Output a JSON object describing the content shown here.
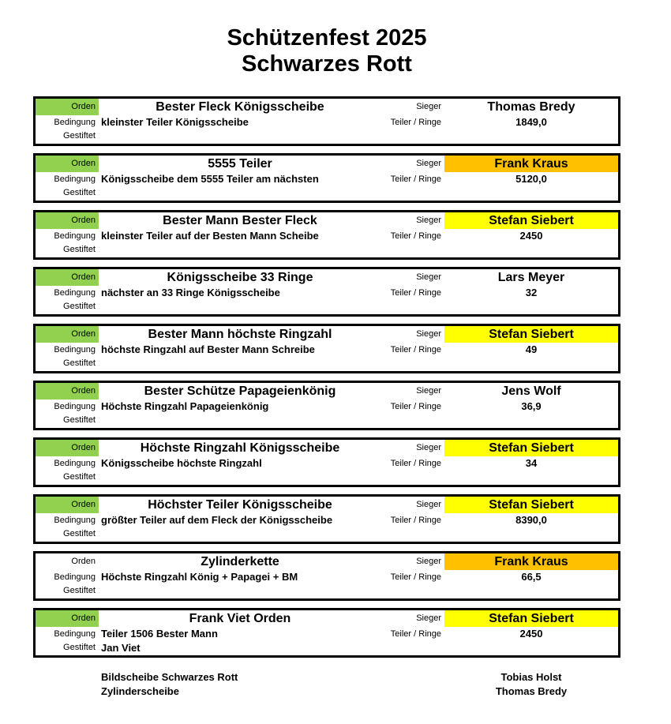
{
  "page": {
    "title_line1": "Schützenfest 2025",
    "title_line2": "Schwarzes Rott"
  },
  "labels": {
    "orden": "Orden",
    "bedingung": "Bedingung",
    "gestiftet": "Gestiftet",
    "sieger": "Sieger",
    "teiler_ringe": "Teiler / Ringe"
  },
  "colors": {
    "orden_green": "#92d050",
    "winner_yellow": "#ffff00",
    "winner_orange": "#ffc000"
  },
  "awards": [
    {
      "title": "Bester Fleck Königsscheibe",
      "bedingung": "kleinster Teiler Königsscheibe",
      "gestiftet": "",
      "sieger": "Thomas Bredy",
      "teiler_ringe": "1849,0",
      "orden_color": "#92d050",
      "winner_color": ""
    },
    {
      "title": "5555 Teiler",
      "bedingung": "Königsscheibe dem 5555 Teiler am nächsten",
      "gestiftet": "",
      "sieger": "Frank Kraus",
      "teiler_ringe": "5120,0",
      "orden_color": "#92d050",
      "winner_color": "#ffc000"
    },
    {
      "title": "Bester Mann Bester Fleck",
      "bedingung": "kleinster Teiler auf der Besten Mann Scheibe",
      "gestiftet": "",
      "sieger": "Stefan Siebert",
      "teiler_ringe": "2450",
      "orden_color": "#92d050",
      "winner_color": "#ffff00"
    },
    {
      "title": "Königsscheibe 33 Ringe",
      "bedingung": "nächster an 33 Ringe Königsscheibe",
      "gestiftet": "",
      "sieger": "Lars Meyer",
      "teiler_ringe": "32",
      "orden_color": "#92d050",
      "winner_color": ""
    },
    {
      "title": "Bester Mann höchste Ringzahl",
      "bedingung": "höchste Ringzahl auf Bester Mann Schreibe",
      "gestiftet": "",
      "sieger": "Stefan Siebert",
      "teiler_ringe": "49",
      "orden_color": "#92d050",
      "winner_color": "#ffff00"
    },
    {
      "title": "Bester Schütze Papageienkönig",
      "bedingung": "Höchste Ringzahl Papageienkönig",
      "gestiftet": "",
      "sieger": "Jens Wolf",
      "teiler_ringe": "36,9",
      "orden_color": "#92d050",
      "winner_color": ""
    },
    {
      "title": "Höchste Ringzahl Königsscheibe",
      "bedingung": "Königsscheibe höchste Ringzahl",
      "gestiftet": "",
      "sieger": "Stefan Siebert",
      "teiler_ringe": "34",
      "orden_color": "#92d050",
      "winner_color": "#ffff00"
    },
    {
      "title": "Höchster Teiler Königsscheibe",
      "bedingung": "größter Teiler auf dem Fleck der Königsscheibe",
      "gestiftet": "",
      "sieger": "Stefan Siebert",
      "teiler_ringe": "8390,0",
      "orden_color": "#92d050",
      "winner_color": "#ffff00"
    },
    {
      "title": "Zylinderkette",
      "bedingung": "Höchste Ringzahl König + Papagei + BM",
      "gestiftet": "",
      "sieger": "Frank Kraus",
      "teiler_ringe": "66,5",
      "orden_color": "",
      "winner_color": "#ffc000"
    },
    {
      "title": "Frank Viet Orden",
      "bedingung": "Teiler 1506 Bester Mann",
      "gestiftet": "Jan Viet",
      "sieger": "Stefan Siebert",
      "teiler_ringe": "2450",
      "orden_color": "#92d050",
      "winner_color": "#ffff00"
    }
  ],
  "footer": {
    "left_line1": "Bildscheibe Schwarzes Rott",
    "left_line2": "Zylinderscheibe",
    "right_line1": "Tobias Holst",
    "right_line2": "Thomas Bredy"
  }
}
